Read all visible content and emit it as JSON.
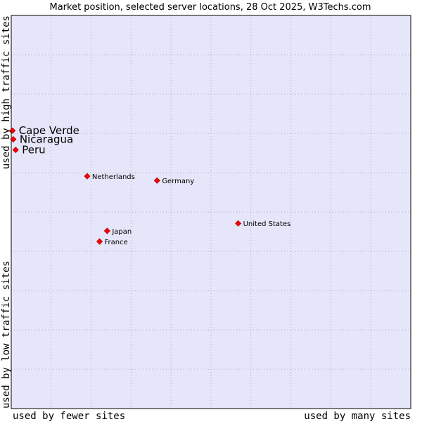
{
  "chart_data": {
    "type": "scatter",
    "title": "Market position, selected server locations, 28 Oct 2025, W3Techs.com",
    "xlabel_left": "used by fewer sites",
    "xlabel_right": "used by many sites",
    "ylabel_bottom": "used by low traffic sites",
    "ylabel_top": "used by high traffic sites",
    "xlim": [
      0,
      100
    ],
    "ylim": [
      0,
      100
    ],
    "grid": true,
    "colors": {
      "plot_background": "#e6e6fa",
      "grid": "#a9a9c8",
      "border": "#000000",
      "marker": "#ff0000",
      "marker_edge": "#aa0000"
    },
    "points": [
      {
        "label": "Cape Verde",
        "x": 0.3,
        "y": 70.7,
        "highlight": true
      },
      {
        "label": "Nicaragua",
        "x": 0.5,
        "y": 68.5,
        "highlight": true
      },
      {
        "label": "Peru",
        "x": 1.1,
        "y": 65.8,
        "highlight": true
      },
      {
        "label": "Netherlands",
        "x": 19.0,
        "y": 59.1,
        "highlight": false
      },
      {
        "label": "Germany",
        "x": 36.5,
        "y": 58.0,
        "highlight": false
      },
      {
        "label": "United States",
        "x": 56.8,
        "y": 47.1,
        "highlight": false
      },
      {
        "label": "Japan",
        "x": 24.0,
        "y": 45.2,
        "highlight": false
      },
      {
        "label": "France",
        "x": 22.1,
        "y": 42.5,
        "highlight": false
      }
    ]
  }
}
